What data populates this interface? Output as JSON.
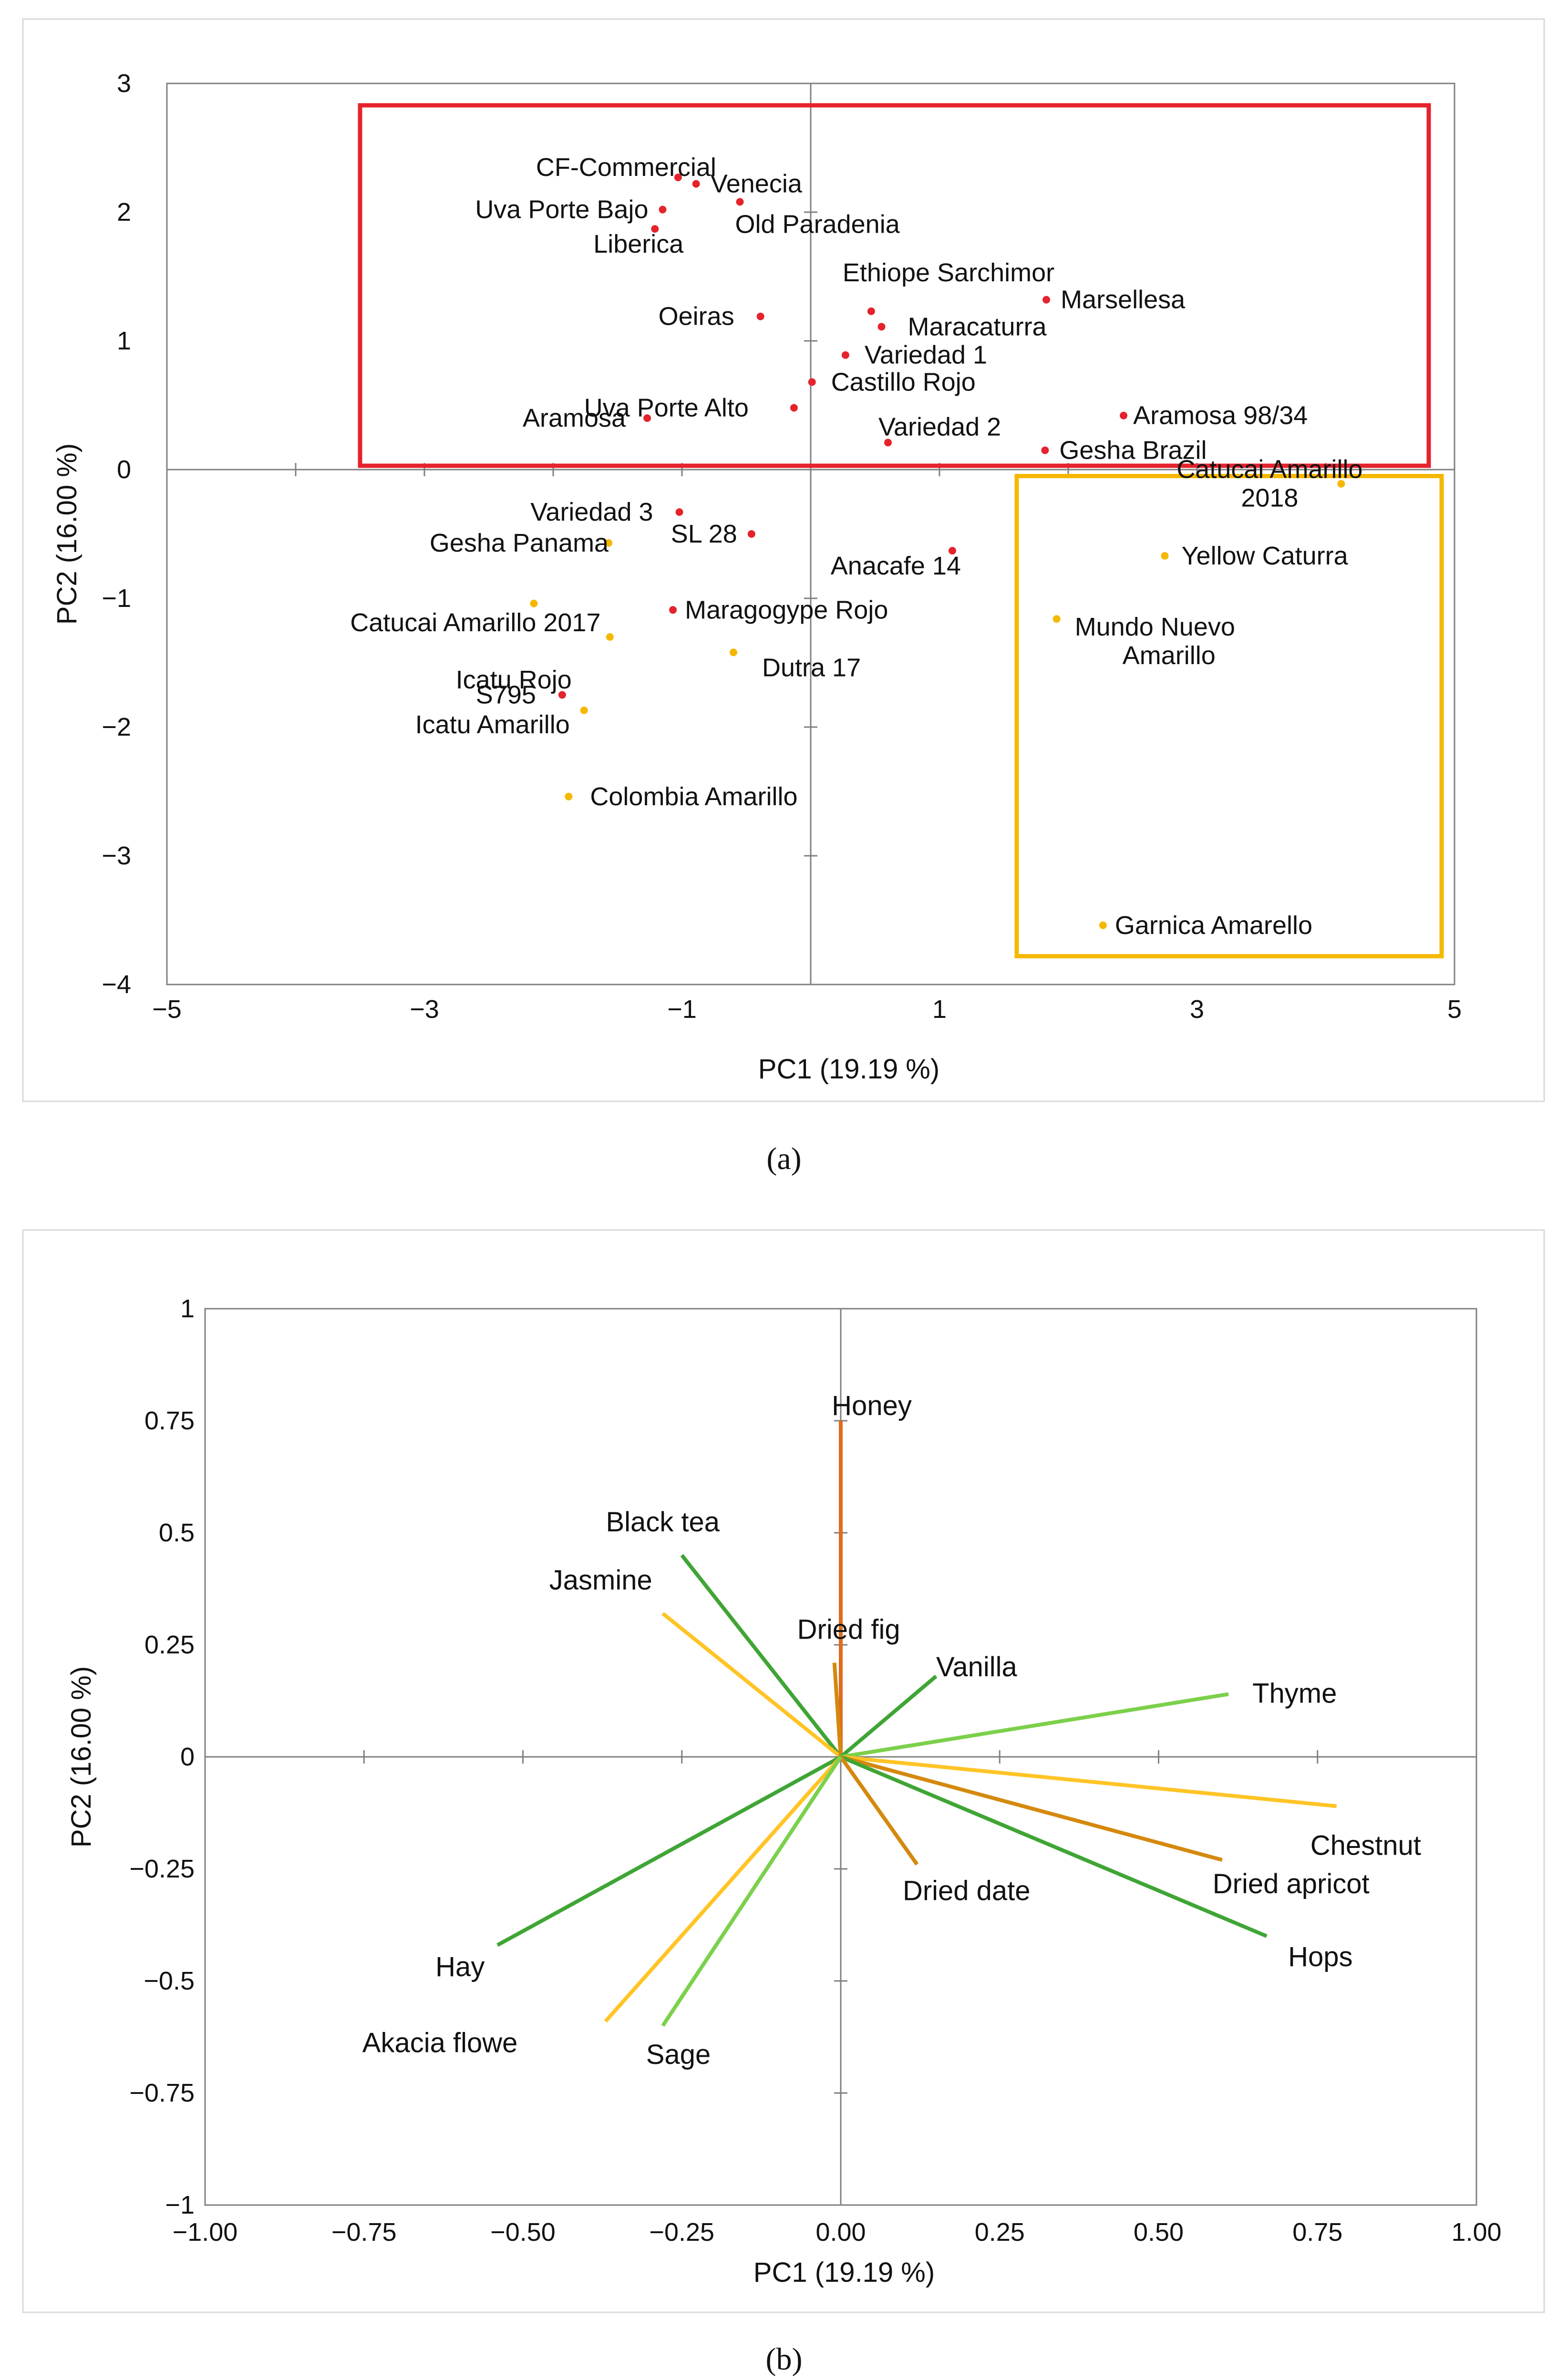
{
  "caption_a": "(a)",
  "caption_b": "(b)",
  "colors": {
    "red": "#e5232c",
    "orange": "#f5b800",
    "yellow": "#ffc425",
    "green": "#3fa535",
    "light_green": "#7cd04b",
    "dark_orange": "#d4890e",
    "honey": "#e06c1c"
  },
  "chart_data": [
    {
      "type": "scatter",
      "xlabel": "PC1 (19.19 %)",
      "ylabel": "PC2 (16.00 %)",
      "xlim": [
        -5,
        5
      ],
      "ylim": [
        -4,
        3
      ],
      "xticks": [
        -5,
        -3,
        -1,
        1,
        3,
        5
      ],
      "yticks": [
        3,
        2,
        1,
        0,
        -1,
        -2,
        -3,
        -4
      ],
      "grid": false,
      "highlight_boxes": [
        {
          "color": "red",
          "x": [
            -3.5,
            4.8
          ],
          "y": [
            0.03,
            2.83
          ]
        },
        {
          "color": "orange",
          "x": [
            1.6,
            4.9
          ],
          "y": [
            -3.78,
            -0.05
          ]
        }
      ],
      "points": [
        {
          "label": "CF-Commercial",
          "x": -1.03,
          "y": 2.27,
          "color": "red"
        },
        {
          "label": "Venecia",
          "x": -0.89,
          "y": 2.22,
          "color": "red"
        },
        {
          "label": "Uva Porte Bajo",
          "x": -1.15,
          "y": 2.02,
          "color": "red"
        },
        {
          "label": "Old Paradenia",
          "x": -0.55,
          "y": 2.08,
          "color": "red"
        },
        {
          "label": "Liberica",
          "x": -1.21,
          "y": 1.87,
          "color": "red"
        },
        {
          "label": "Ethiope Sarchimor",
          "x": 0.47,
          "y": 1.23,
          "color": "red"
        },
        {
          "label": "Marsellesa",
          "x": 1.83,
          "y": 1.32,
          "color": "red"
        },
        {
          "label": "Maracaturra",
          "x": 0.55,
          "y": 1.11,
          "color": "red"
        },
        {
          "label": "Oeiras",
          "x": -0.39,
          "y": 1.19,
          "color": "red"
        },
        {
          "label": "Variedad 1",
          "x": 0.27,
          "y": 0.89,
          "color": "red"
        },
        {
          "label": "Castillo Rojo",
          "x": 0.01,
          "y": 0.68,
          "color": "red"
        },
        {
          "label": "Uva Porte Alto",
          "x": -0.13,
          "y": 0.48,
          "color": "red"
        },
        {
          "label": "Aramosa",
          "x": -1.27,
          "y": 0.4,
          "color": "red"
        },
        {
          "label": "Aramosa 98/34",
          "x": 2.43,
          "y": 0.42,
          "color": "red"
        },
        {
          "label": "Variedad 2",
          "x": 0.6,
          "y": 0.21,
          "color": "red"
        },
        {
          "label": "Gesha Brazil",
          "x": 1.82,
          "y": 0.15,
          "color": "red"
        },
        {
          "label": "Variedad 3",
          "x": -1.02,
          "y": -0.33,
          "color": "red"
        },
        {
          "label": "SL 28",
          "x": -0.46,
          "y": -0.5,
          "color": "red"
        },
        {
          "label": "Anacafe 14",
          "x": 1.1,
          "y": -0.63,
          "color": "red"
        },
        {
          "label": "Maragogype Rojo",
          "x": -1.07,
          "y": -1.09,
          "color": "red"
        },
        {
          "label": "S795",
          "x": -1.93,
          "y": -1.75,
          "color": "red"
        },
        {
          "label": "Gesha Panama",
          "x": -1.57,
          "y": -0.57,
          "color": "orange"
        },
        {
          "label": "Catucai Amarillo 2017",
          "x": -2.15,
          "y": -1.04,
          "color": "orange"
        },
        {
          "label": "Icatu Rojo",
          "x": -1.56,
          "y": -1.3,
          "color": "orange"
        },
        {
          "label": "Dutra 17",
          "x": -0.6,
          "y": -1.42,
          "color": "orange"
        },
        {
          "label": "Icatu Amarillo",
          "x": -1.76,
          "y": -1.87,
          "color": "orange"
        },
        {
          "label": "Colombia Amarillo",
          "x": -1.88,
          "y": -2.54,
          "color": "orange"
        },
        {
          "label": "Catucai Amarillo 2018",
          "x": 4.12,
          "y": -0.11,
          "color": "orange"
        },
        {
          "label": "Yellow Caturra",
          "x": 2.75,
          "y": -0.67,
          "color": "orange"
        },
        {
          "label": "Mundo Nuevo Amarillo",
          "x": 1.91,
          "y": -1.16,
          "color": "orange"
        },
        {
          "label": "Garnica Amarello",
          "x": 2.27,
          "y": -3.54,
          "color": "orange"
        }
      ]
    },
    {
      "type": "line",
      "xlabel": "PC1 (19.19 %)",
      "ylabel": "PC2  (16.00 %)",
      "xlim": [
        -1.0,
        1.0
      ],
      "ylim": [
        -1,
        1
      ],
      "xticks": [
        "-1.00",
        "-0.75",
        "-0.50",
        "-0.25",
        "0.00",
        "0.25",
        "0.50",
        "0.75",
        "1.00"
      ],
      "yticks": [
        "1",
        "0.75",
        "0.5",
        "0.25",
        "0",
        "-0.25",
        "-0.5",
        "-0.75",
        "-1"
      ],
      "grid": false,
      "vectors": [
        {
          "label": "Honey",
          "x": 0.0,
          "y": 0.75,
          "color": "honey"
        },
        {
          "label": "Black tea",
          "x": -0.25,
          "y": 0.45,
          "color": "green"
        },
        {
          "label": "Jasmine",
          "x": -0.28,
          "y": 0.32,
          "color": "yellow"
        },
        {
          "label": "Dried fig",
          "x": -0.01,
          "y": 0.21,
          "color": "dark_orange"
        },
        {
          "label": "Vanilla",
          "x": 0.15,
          "y": 0.18,
          "color": "green"
        },
        {
          "label": "Thyme",
          "x": 0.61,
          "y": 0.14,
          "color": "light_green"
        },
        {
          "label": "Chestnut",
          "x": 0.78,
          "y": -0.11,
          "color": "yellow"
        },
        {
          "label": "Dried apricot",
          "x": 0.6,
          "y": -0.23,
          "color": "dark_orange"
        },
        {
          "label": "Hops",
          "x": 0.67,
          "y": -0.4,
          "color": "green"
        },
        {
          "label": "Dried date",
          "x": 0.12,
          "y": -0.24,
          "color": "dark_orange"
        },
        {
          "label": "Hay",
          "x": -0.54,
          "y": -0.42,
          "color": "green"
        },
        {
          "label": "Akacia flowe",
          "x": -0.37,
          "y": -0.59,
          "color": "yellow"
        },
        {
          "label": "Sage",
          "x": -0.28,
          "y": -0.6,
          "color": "light_green"
        }
      ]
    }
  ]
}
